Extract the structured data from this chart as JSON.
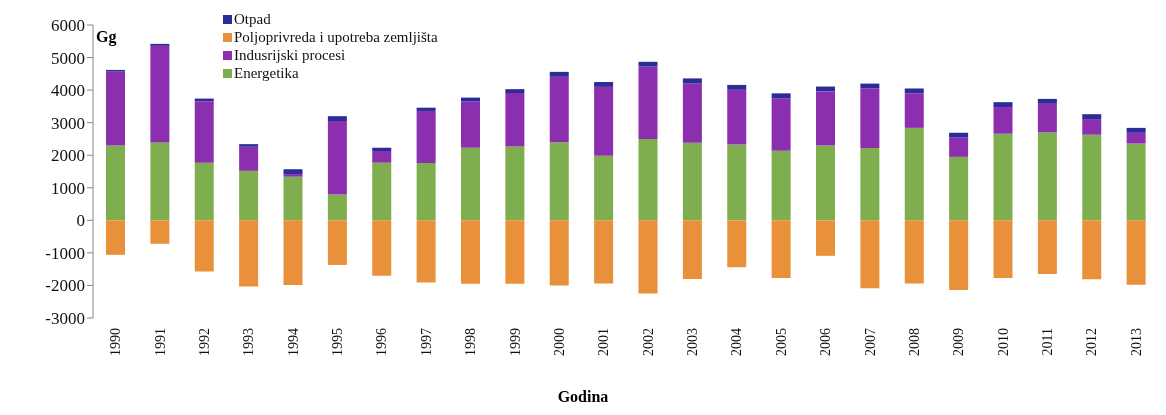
{
  "chart_data": {
    "type": "bar",
    "stacked": true,
    "ylabel": "Gg",
    "xlabel": "Godina",
    "categories": [
      "1990",
      "1991",
      "1992",
      "1993",
      "1994",
      "1995",
      "1996",
      "1997",
      "1998",
      "1999",
      "2000",
      "2001",
      "2002",
      "2003",
      "2004",
      "2005",
      "2006",
      "2007",
      "2008",
      "2009",
      "2010",
      "2011",
      "2012",
      "2013"
    ],
    "series": [
      {
        "name": "Energetika",
        "color": "#7fae4f",
        "values": [
          2300,
          2390,
          1770,
          1520,
          1340,
          790,
          1770,
          1760,
          2230,
          2270,
          2400,
          1980,
          2500,
          2380,
          2330,
          2140,
          2300,
          2220,
          2840,
          1950,
          2660,
          2700,
          2630,
          2360
        ]
      },
      {
        "name": "Indusrijski procesi",
        "color": "#8b2fae",
        "values": [
          2270,
          2970,
          1890,
          740,
          80,
          2260,
          360,
          1600,
          1420,
          1640,
          2010,
          2120,
          2220,
          1830,
          1680,
          1610,
          1660,
          1830,
          1060,
          590,
          820,
          880,
          480,
          330
        ]
      },
      {
        "name": "Poljoprivreda i upotreba zemljišta",
        "color": "#e8913a",
        "values": [
          -1060,
          -720,
          -1570,
          -2030,
          -1990,
          -1370,
          -1700,
          -1910,
          -1950,
          -1950,
          -2000,
          -1940,
          -2250,
          -1800,
          -1440,
          -1770,
          -1090,
          -2090,
          -1940,
          -2140,
          -1770,
          -1650,
          -1810,
          -1980
        ]
      },
      {
        "name": "Otpad",
        "color": "#2b2b9a",
        "values": [
          50,
          60,
          80,
          80,
          150,
          150,
          100,
          100,
          120,
          120,
          150,
          150,
          150,
          150,
          150,
          150,
          150,
          150,
          150,
          150,
          150,
          150,
          150,
          150
        ]
      }
    ],
    "ylim": [
      -3000,
      6000
    ],
    "yticks": [
      -3000,
      -2000,
      -1000,
      0,
      1000,
      2000,
      3000,
      4000,
      5000,
      6000
    ],
    "legend": "top left"
  }
}
